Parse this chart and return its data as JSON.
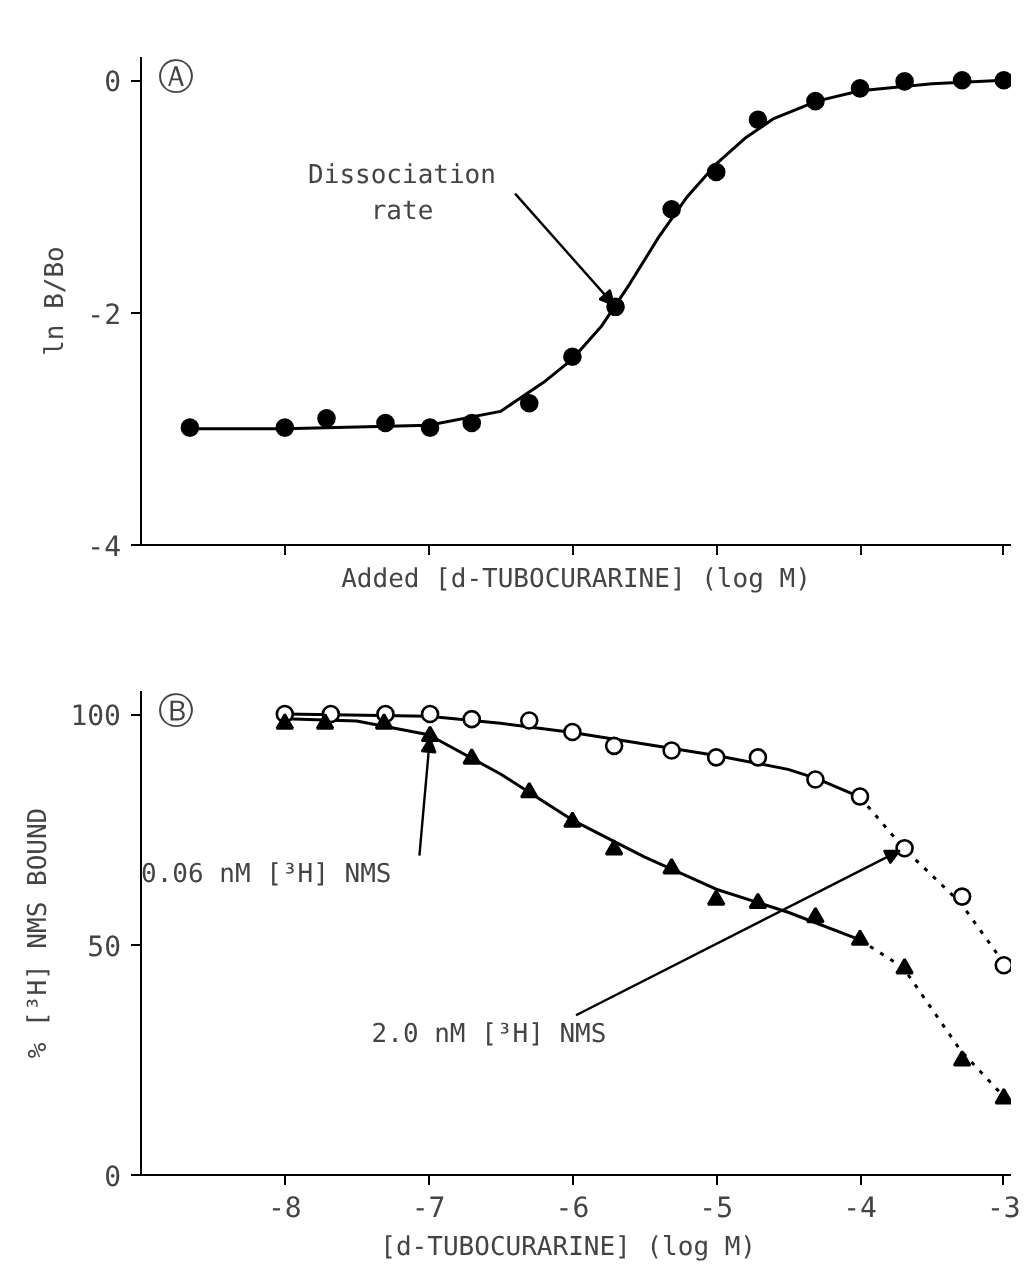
{
  "chart_data": [
    {
      "type": "scatter",
      "ylabel": "ln B/Bo",
      "xlabel": "Added [d-TUBOCURARINE] (log M)",
      "xlim": [
        -9.0,
        -2.95
      ],
      "xticks": [
        {
          "value": -8,
          "label": null
        },
        {
          "value": -7,
          "label": null
        },
        {
          "value": -6,
          "label": null
        },
        {
          "value": -5,
          "label": null
        },
        {
          "value": -4,
          "label": null
        },
        {
          "value": -3,
          "label": null
        }
      ],
      "ylim": [
        -4,
        0.2
      ],
      "yticks": [
        0,
        -2,
        -4
      ],
      "tick_labels": "y",
      "grid": false,
      "series": [
        {
          "type": "line",
          "color": "#000000",
          "line_style": "solid",
          "marker": "none",
          "x": [
            -8.66,
            -8.0,
            -7.0,
            -6.5,
            -6.2,
            -6.0,
            -5.8,
            -5.6,
            -5.4,
            -5.2,
            -5.0,
            -4.8,
            -4.6,
            -4.3,
            -4.0,
            -3.5,
            -3.0
          ],
          "values": [
            -3.0,
            -3.0,
            -2.97,
            -2.85,
            -2.6,
            -2.4,
            -2.12,
            -1.75,
            -1.35,
            -1.0,
            -0.72,
            -0.5,
            -0.33,
            -0.18,
            -0.09,
            -0.03,
            0.0
          ]
        },
        {
          "color": "#000000",
          "marker": "circle",
          "x": [
            -8.66,
            -8.0,
            -7.71,
            -7.3,
            -6.99,
            -6.7,
            -6.3,
            -6.0,
            -5.7,
            -5.31,
            -5.0,
            -4.71,
            -4.31,
            -4.0,
            -3.69,
            -3.29,
            -3.0
          ],
          "values": [
            -2.99,
            -2.99,
            -2.91,
            -2.95,
            -2.99,
            -2.95,
            -2.78,
            -2.38,
            -1.95,
            -1.11,
            -0.79,
            -0.34,
            -0.18,
            -0.07,
            -0.01,
            0.0,
            0.0
          ]
        }
      ],
      "annotations": [
        "Ⓐ",
        {
          "text": "Dissociation\nrate",
          "x": -5.7,
          "y": -1.95
        }
      ]
    },
    {
      "type": "scatter",
      "ylabel": "% [³H] NMS BOUND",
      "xlabel": "[d-TUBOCURARINE]  (log M)",
      "xlim": [
        -9.0,
        -2.95
      ],
      "xticks": [
        -8,
        -7,
        -6,
        -5,
        -4,
        -3
      ],
      "ylim": [
        0,
        105
      ],
      "yticks": [
        0,
        50,
        100
      ],
      "grid": false,
      "series": [
        {
          "type": "line",
          "color": "#000000",
          "line_style": "solid",
          "marker": "none",
          "x": [
            -8.0,
            -7.0,
            -6.5,
            -6.0,
            -5.5,
            -5.0,
            -4.5,
            -4.3,
            -4.0
          ],
          "values": [
            100,
            99.5,
            98,
            96,
            93.5,
            91,
            88,
            86,
            82
          ]
        },
        {
          "type": "line",
          "color": "#000000",
          "line_style": "dotted",
          "marker": "none",
          "x": [
            -4.0,
            -3.7,
            -3.3,
            -3.0
          ],
          "values": [
            82,
            71,
            59,
            46
          ]
        },
        {
          "type": "line",
          "color": "#000000",
          "line_style": "solid",
          "marker": "none",
          "x": [
            -8.0,
            -7.5,
            -7.0,
            -6.5,
            -6.0,
            -5.5,
            -5.0,
            -4.5,
            -4.0
          ],
          "values": [
            99,
            98.5,
            95.5,
            87,
            77,
            69,
            62,
            57,
            51
          ]
        },
        {
          "type": "line",
          "color": "#000000",
          "line_style": "dotted",
          "marker": "none",
          "x": [
            -4.0,
            -3.7,
            -3.3,
            -3.0
          ],
          "values": [
            51,
            45,
            27,
            17
          ]
        },
        {
          "color": "#ffffff",
          "marker": "circle",
          "x": [
            -8.0,
            -7.68,
            -7.3,
            -6.99,
            -6.7,
            -6.3,
            -6.0,
            -5.71,
            -5.31,
            -5.0,
            -4.71,
            -4.31,
            -4.0,
            -3.69,
            -3.29,
            -3.0
          ],
          "values": [
            100,
            100,
            100,
            100,
            98.9,
            98.6,
            96.1,
            93.1,
            92.1,
            90.6,
            90.6,
            85.8,
            82.1,
            70.9,
            60.4,
            45.5
          ]
        },
        {
          "color": "#000000",
          "marker": "triangle",
          "x": [
            -8.0,
            -7.72,
            -7.31,
            -6.99,
            -6.7,
            -6.3,
            -6.0,
            -5.71,
            -5.31,
            -5.0,
            -4.71,
            -4.31,
            -4.0,
            -3.69,
            -3.29,
            -3.0
          ],
          "values": [
            97.9,
            97.9,
            97.9,
            95.2,
            90.3,
            83.0,
            76.6,
            70.6,
            66.5,
            59.7,
            59.0,
            55.9,
            51.0,
            44.8,
            24.8,
            16.6
          ]
        }
      ],
      "annotations": [
        "Ⓑ",
        {
          "text": "0.06 nM [³H] NMS",
          "x": -6.99,
          "y": 95.2
        },
        {
          "text": "2.0 nM [³H] NMS",
          "x": -3.69,
          "y": 70.9
        }
      ]
    }
  ]
}
